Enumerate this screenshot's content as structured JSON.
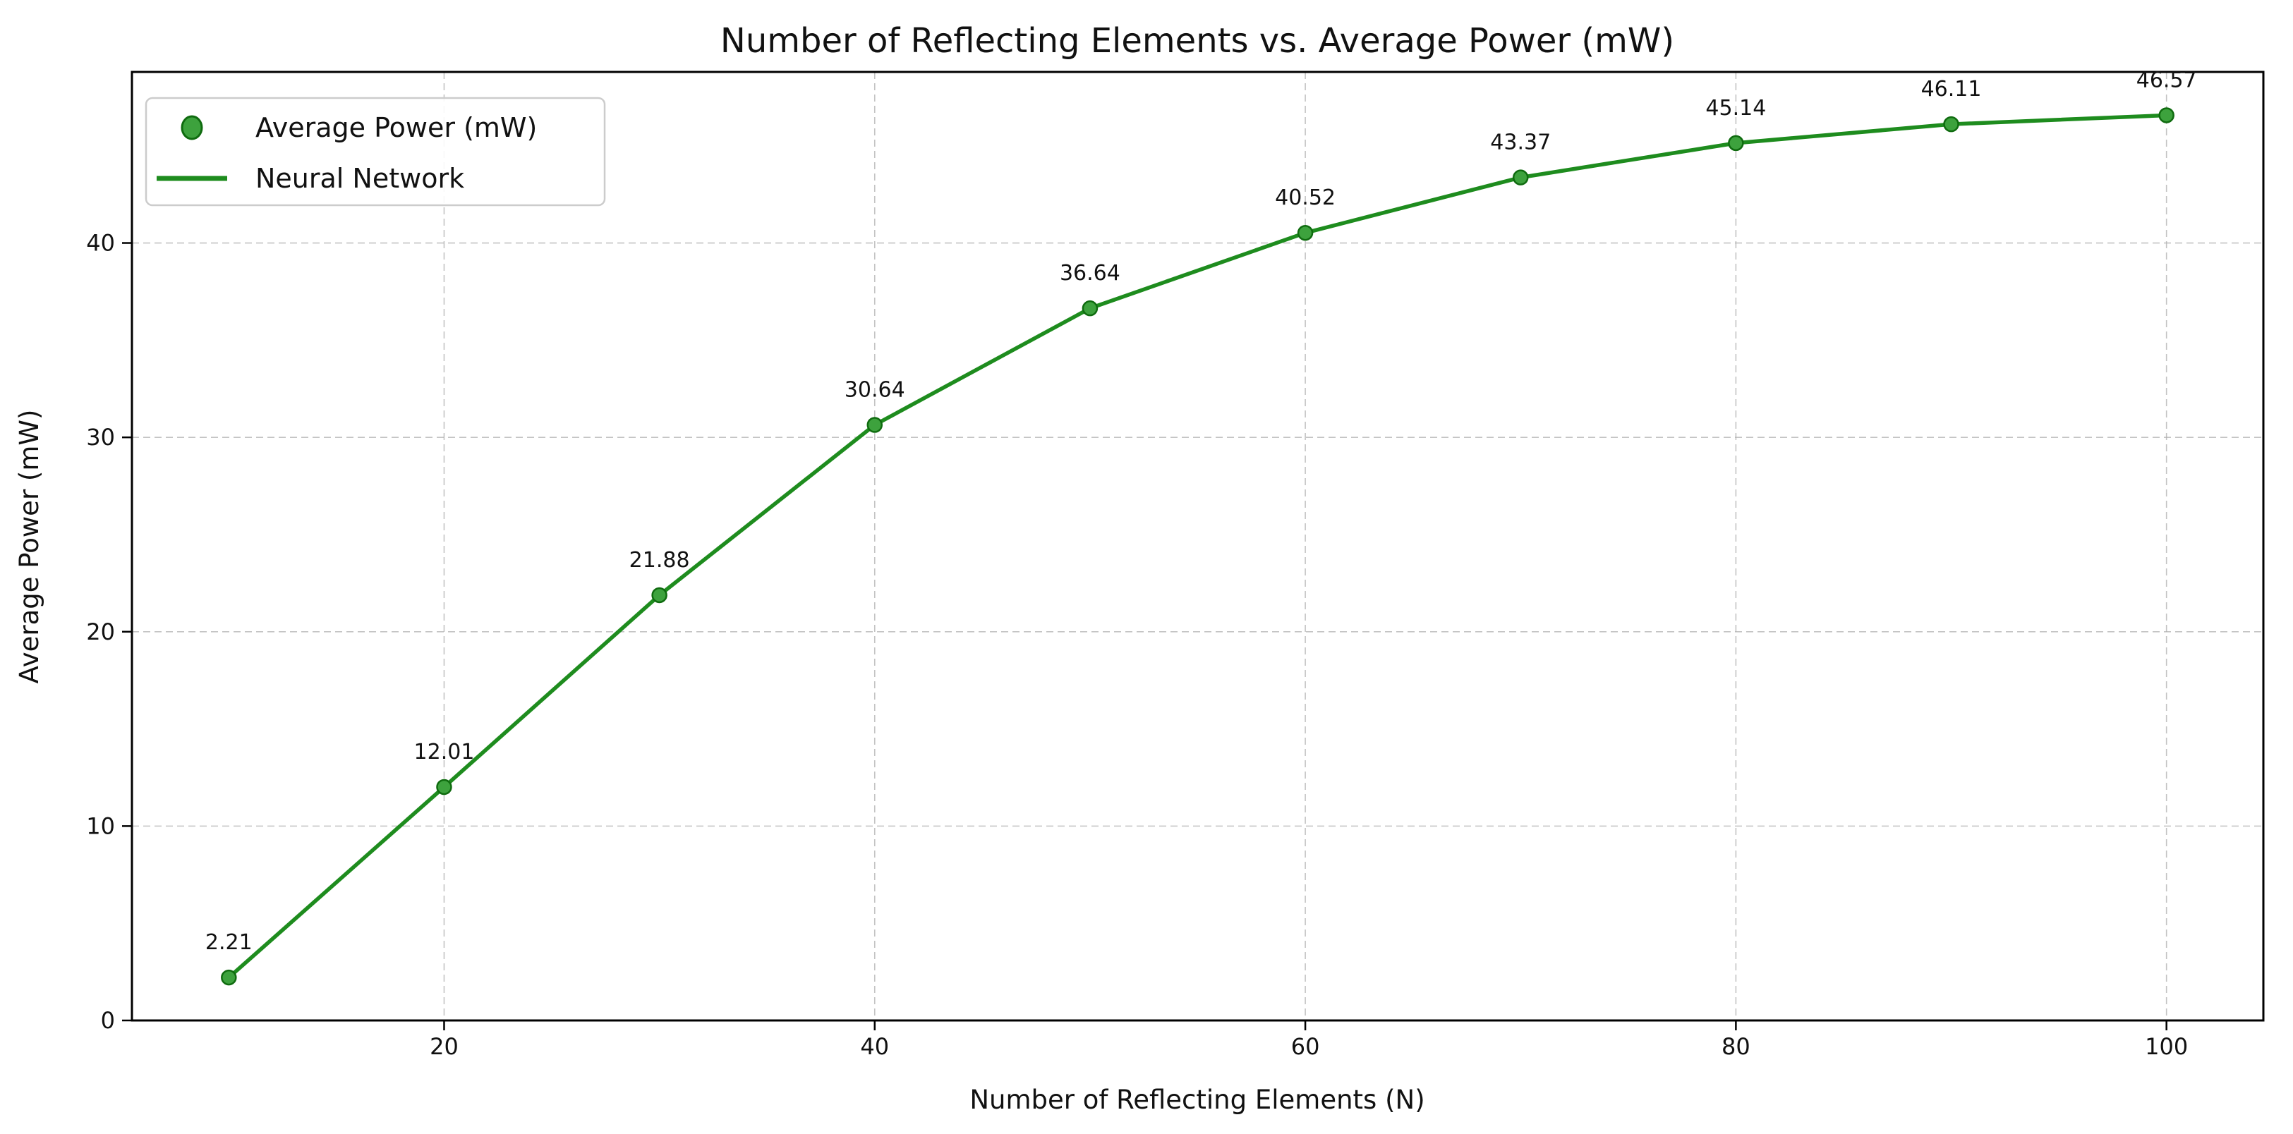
{
  "chart_data": {
    "type": "line",
    "title": "Number of Reflecting Elements vs. Average Power (mW)",
    "xlabel": "Number of Reflecting Elements (N)",
    "ylabel": "Average Power (mW)",
    "x": [
      10,
      20,
      30,
      40,
      50,
      60,
      70,
      80,
      90,
      100
    ],
    "series": [
      {
        "name": "Average Power (mW)",
        "type": "scatter",
        "values": [
          2.21,
          12.01,
          21.88,
          30.64,
          36.64,
          40.52,
          43.37,
          45.14,
          46.11,
          46.57
        ]
      },
      {
        "name": "Neural Network",
        "type": "line",
        "values": [
          2.21,
          12.01,
          21.88,
          30.64,
          36.64,
          40.52,
          43.37,
          45.14,
          46.11,
          46.57
        ]
      }
    ],
    "point_labels": [
      "2.21",
      "12.01",
      "21.88",
      "30.64",
      "36.64",
      "40.52",
      "43.37",
      "45.14",
      "46.11",
      "46.57"
    ],
    "xticks": [
      20,
      40,
      60,
      80,
      100
    ],
    "yticks": [
      0,
      10,
      20,
      30,
      40
    ],
    "xlim": [
      5.5,
      104.5
    ],
    "ylim": [
      0,
      48.8
    ],
    "grid": true,
    "grid_style": "dashed",
    "legend_position": "upper left",
    "legend": [
      {
        "label": "Average Power (mW)",
        "symbol": "marker"
      },
      {
        "label": "Neural Network",
        "symbol": "line"
      }
    ],
    "colors": {
      "line": "#1e8c1e",
      "marker_fill": "#3da23d",
      "marker_edge": "#0f6b0f",
      "grid": "#b0b0b0",
      "spine": "#000000",
      "text": "#111111"
    }
  }
}
